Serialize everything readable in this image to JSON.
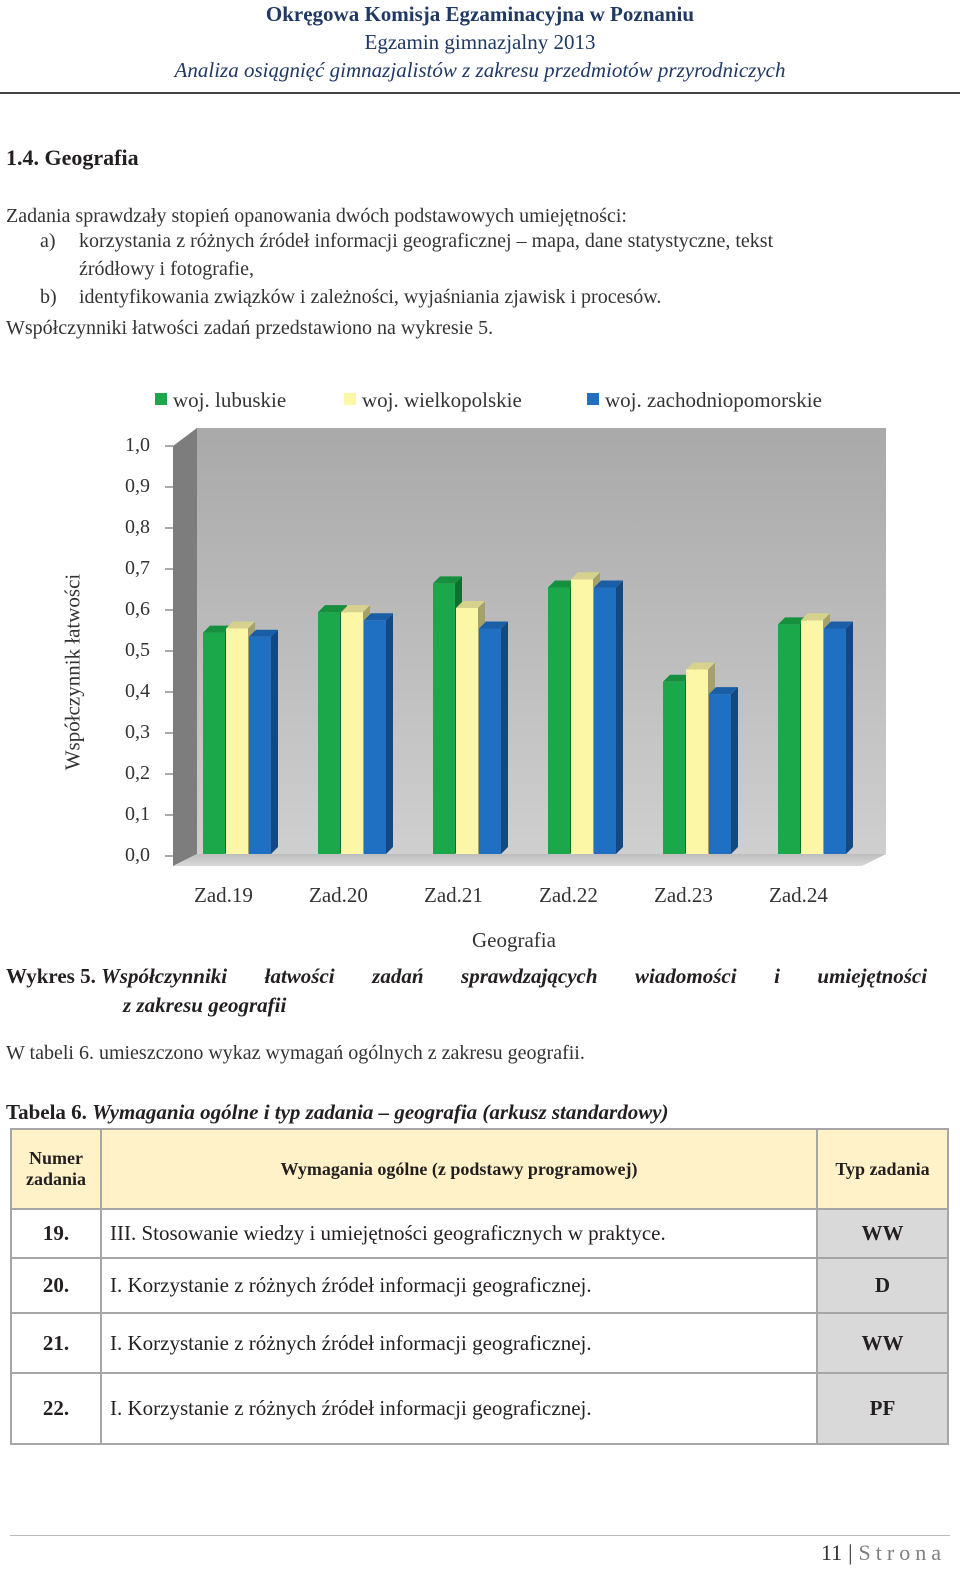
{
  "header": {
    "line1": "Okręgowa Komisja Egzaminacyjna w Poznaniu",
    "line2": "Egzamin gimnazjalny 2013",
    "line3": "Analiza osiągnięć gimnazjalistów z zakresu przedmiotów przyrodniczych"
  },
  "section": {
    "title": "1.4.  Geografia",
    "intro": "Zadania sprawdzały stopień opanowania dwóch podstawowych umiejętności:",
    "items": [
      {
        "marker": "a)",
        "line1": "korzystania z różnych źródeł informacji geograficznej – mapa, dane statystyczne, tekst",
        "line2": "źródłowy i fotografie,"
      },
      {
        "marker": "b)",
        "line1": "identyfikowania związków i zależności, wyjaśniania zjawisk i procesów."
      }
    ],
    "outro": "Współczynniki łatwości zadań przedstawiono na wykresie 5."
  },
  "chart_data": {
    "type": "bar",
    "title": "",
    "xlabel": "Geografia",
    "ylabel": "Współczynnik łatwości",
    "ylim": [
      0,
      1
    ],
    "y_ticks": [
      "0,0",
      "0,1",
      "0,2",
      "0,3",
      "0,4",
      "0,5",
      "0,6",
      "0,7",
      "0,8",
      "0,9",
      "1,0"
    ],
    "categories": [
      "Zad.19",
      "Zad.20",
      "Zad.21",
      "Zad.22",
      "Zad.23",
      "Zad.24"
    ],
    "series": [
      {
        "name": "woj. lubuskie",
        "color": "#1aa84a",
        "values": [
          0.54,
          0.59,
          0.66,
          0.65,
          0.42,
          0.56
        ]
      },
      {
        "name": "woj. wielkopolskie",
        "color": "#fcf7a6",
        "values": [
          0.55,
          0.59,
          0.6,
          0.67,
          0.45,
          0.57
        ]
      },
      {
        "name": "woj. zachodniopomorskie",
        "color": "#1f6fc2",
        "values": [
          0.53,
          0.57,
          0.55,
          0.65,
          0.39,
          0.55
        ]
      }
    ],
    "legend_position": "top",
    "grid": false
  },
  "caption": {
    "label": "Wykres 5.",
    "text": "Współczynniki łatwości zadań sprawdzających wiadomości i umiejętności",
    "text2": "z zakresu geografii"
  },
  "paragraph": "W tabeli 6. umieszczono wykaz wymagań ogólnych z zakresu geografii.",
  "table": {
    "label": "Tabela 6.",
    "title": "Wymagania ogólne i typ zadania – geografia (arkusz standardowy)",
    "headers": [
      "Numer zadania",
      "Wymagania ogólne (z podstawy programowej)",
      "Typ zadania"
    ],
    "rows": [
      {
        "num": "19.",
        "req": "III. Stosowanie wiedzy i umiejętności geograficznych w praktyce.",
        "type": "WW"
      },
      {
        "num": "20.",
        "req": "I. Korzystanie z różnych źródeł informacji geograficznej.",
        "type": "D"
      },
      {
        "num": "21.",
        "req": "I. Korzystanie z różnych źródeł informacji geograficznej.",
        "type": "WW"
      },
      {
        "num": "22.",
        "req": "I. Korzystanie z różnych źródeł informacji geograficznej.",
        "type": "PF"
      }
    ]
  },
  "footer": {
    "page": "11",
    "separator": "|",
    "word": "Strona"
  }
}
